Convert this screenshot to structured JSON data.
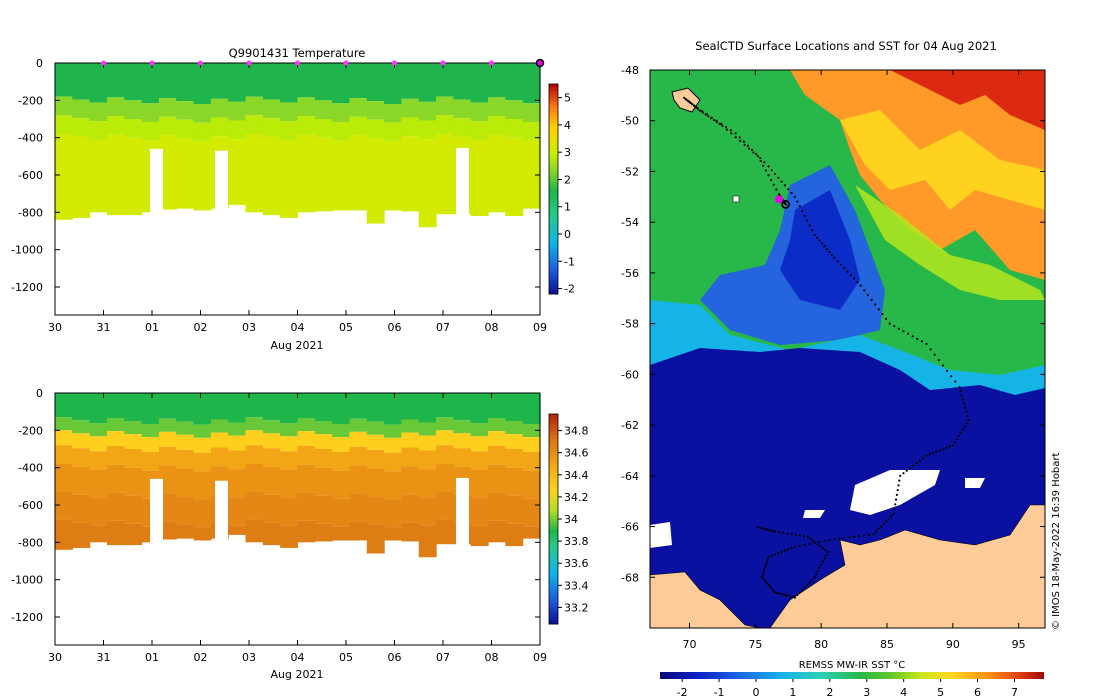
{
  "chart_data": [
    {
      "type": "heatmap",
      "title": "Q9901431  Temperature",
      "xlabel": "Aug 2021",
      "x_tick_labels": [
        "30",
        "31",
        "01",
        "02",
        "03",
        "04",
        "05",
        "06",
        "07",
        "08",
        "09"
      ],
      "x_range_days": [
        0,
        10
      ],
      "ylim": [
        -1350,
        0
      ],
      "y_ticks": [
        0,
        -200,
        -400,
        -600,
        -800,
        -1000,
        -1200
      ],
      "profile_times_days": [
        1,
        2,
        3,
        4,
        5,
        6,
        7,
        8,
        9,
        10
      ],
      "colorbar": {
        "min": -2.2,
        "max": 5.5,
        "ticks": [
          -2,
          -1,
          0,
          1,
          2,
          3,
          4,
          5
        ]
      },
      "layers": [
        {
          "depth_range": [
            0,
            -200
          ],
          "value": 1.6
        },
        {
          "depth_range": [
            -200,
            -300
          ],
          "value": 2.4
        },
        {
          "depth_range": [
            -300,
            -400
          ],
          "value": 2.9
        },
        {
          "depth_range": [
            -400,
            -900
          ],
          "value": 3.2
        }
      ],
      "max_depths": [
        840,
        830,
        800,
        815,
        815,
        800,
        785,
        780,
        790,
        780,
        760,
        800,
        815,
        830,
        800,
        795,
        790,
        790,
        860,
        790,
        795,
        880,
        810,
        810,
        820,
        800,
        820,
        780
      ]
    },
    {
      "type": "heatmap",
      "title": "",
      "xlabel": "Aug 2021",
      "x_tick_labels": [
        "30",
        "31",
        "01",
        "02",
        "03",
        "04",
        "05",
        "06",
        "07",
        "08",
        "09"
      ],
      "x_range_days": [
        0,
        10
      ],
      "ylim": [
        -1350,
        0
      ],
      "y_ticks": [
        0,
        -200,
        -400,
        -600,
        -800,
        -1000,
        -1200
      ],
      "colorbar": {
        "min": 33.05,
        "max": 34.95,
        "ticks": [
          "33.2",
          "33.4",
          "33.6",
          "33.8",
          "34",
          "34.2",
          "34.4",
          "34.6",
          "34.8"
        ]
      },
      "layers": [
        {
          "depth_range": [
            0,
            -150
          ],
          "value": 33.9
        },
        {
          "depth_range": [
            -150,
            -220
          ],
          "value": 34.0
        },
        {
          "depth_range": [
            -220,
            -300
          ],
          "value": 34.3
        },
        {
          "depth_range": [
            -300,
            -400
          ],
          "value": 34.5
        },
        {
          "depth_range": [
            -400,
            -550
          ],
          "value": 34.6
        },
        {
          "depth_range": [
            -550,
            -700
          ],
          "value": 34.65
        },
        {
          "depth_range": [
            -700,
            -900
          ],
          "value": 34.7
        }
      ]
    },
    {
      "type": "map",
      "title": "SealCTD Surface Locations and SST for 04 Aug 2021",
      "xlim": [
        67,
        97
      ],
      "ylim": [
        -70,
        -48
      ],
      "x_ticks": [
        70,
        75,
        80,
        85,
        90,
        95
      ],
      "y_ticks": [
        -48,
        -50,
        -52,
        -54,
        -56,
        -58,
        -60,
        -62,
        -64,
        -66,
        -68
      ],
      "colorbar_label": "REMSS MW-IR SST °C",
      "colorbar": {
        "min": -2.6,
        "max": 7.8,
        "ticks": [
          -2,
          -1,
          0,
          1,
          2,
          3,
          4,
          5,
          6,
          7
        ]
      },
      "credit": "© IMOS 18-May-2022 16:39 Hobart",
      "track": [
        [
          77.3,
          -53.3
        ],
        [
          76.8,
          -52.9
        ],
        [
          75.2,
          -51.4
        ],
        [
          72.5,
          -50.2
        ],
        [
          70.8,
          -49.6
        ],
        [
          69.6,
          -49.1
        ],
        [
          70.6,
          -49.5
        ],
        [
          73.5,
          -50.5
        ],
        [
          76.0,
          -51.8
        ],
        [
          78.0,
          -53.0
        ],
        [
          79.5,
          -54.5
        ],
        [
          81.0,
          -55.4
        ],
        [
          83.0,
          -56.5
        ],
        [
          85.2,
          -58.0
        ],
        [
          88.0,
          -58.8
        ],
        [
          90.5,
          -60.5
        ],
        [
          91.2,
          -61.8
        ],
        [
          90.0,
          -62.8
        ],
        [
          88.0,
          -63.2
        ],
        [
          86.0,
          -64.0
        ],
        [
          85.5,
          -65.5
        ],
        [
          84.0,
          -66.3
        ],
        [
          81.0,
          -66.5
        ],
        [
          78.0,
          -66.8
        ],
        [
          76.0,
          -67.2
        ],
        [
          75.5,
          -68.0
        ],
        [
          76.5,
          -68.6
        ],
        [
          78.0,
          -68.8
        ],
        [
          79.5,
          -68.0
        ],
        [
          80.5,
          -67.0
        ],
        [
          79.0,
          -66.4
        ],
        [
          76.5,
          -66.2
        ],
        [
          75.0,
          -66.0
        ]
      ],
      "last_position": [
        77.3,
        -53.3
      ]
    }
  ]
}
